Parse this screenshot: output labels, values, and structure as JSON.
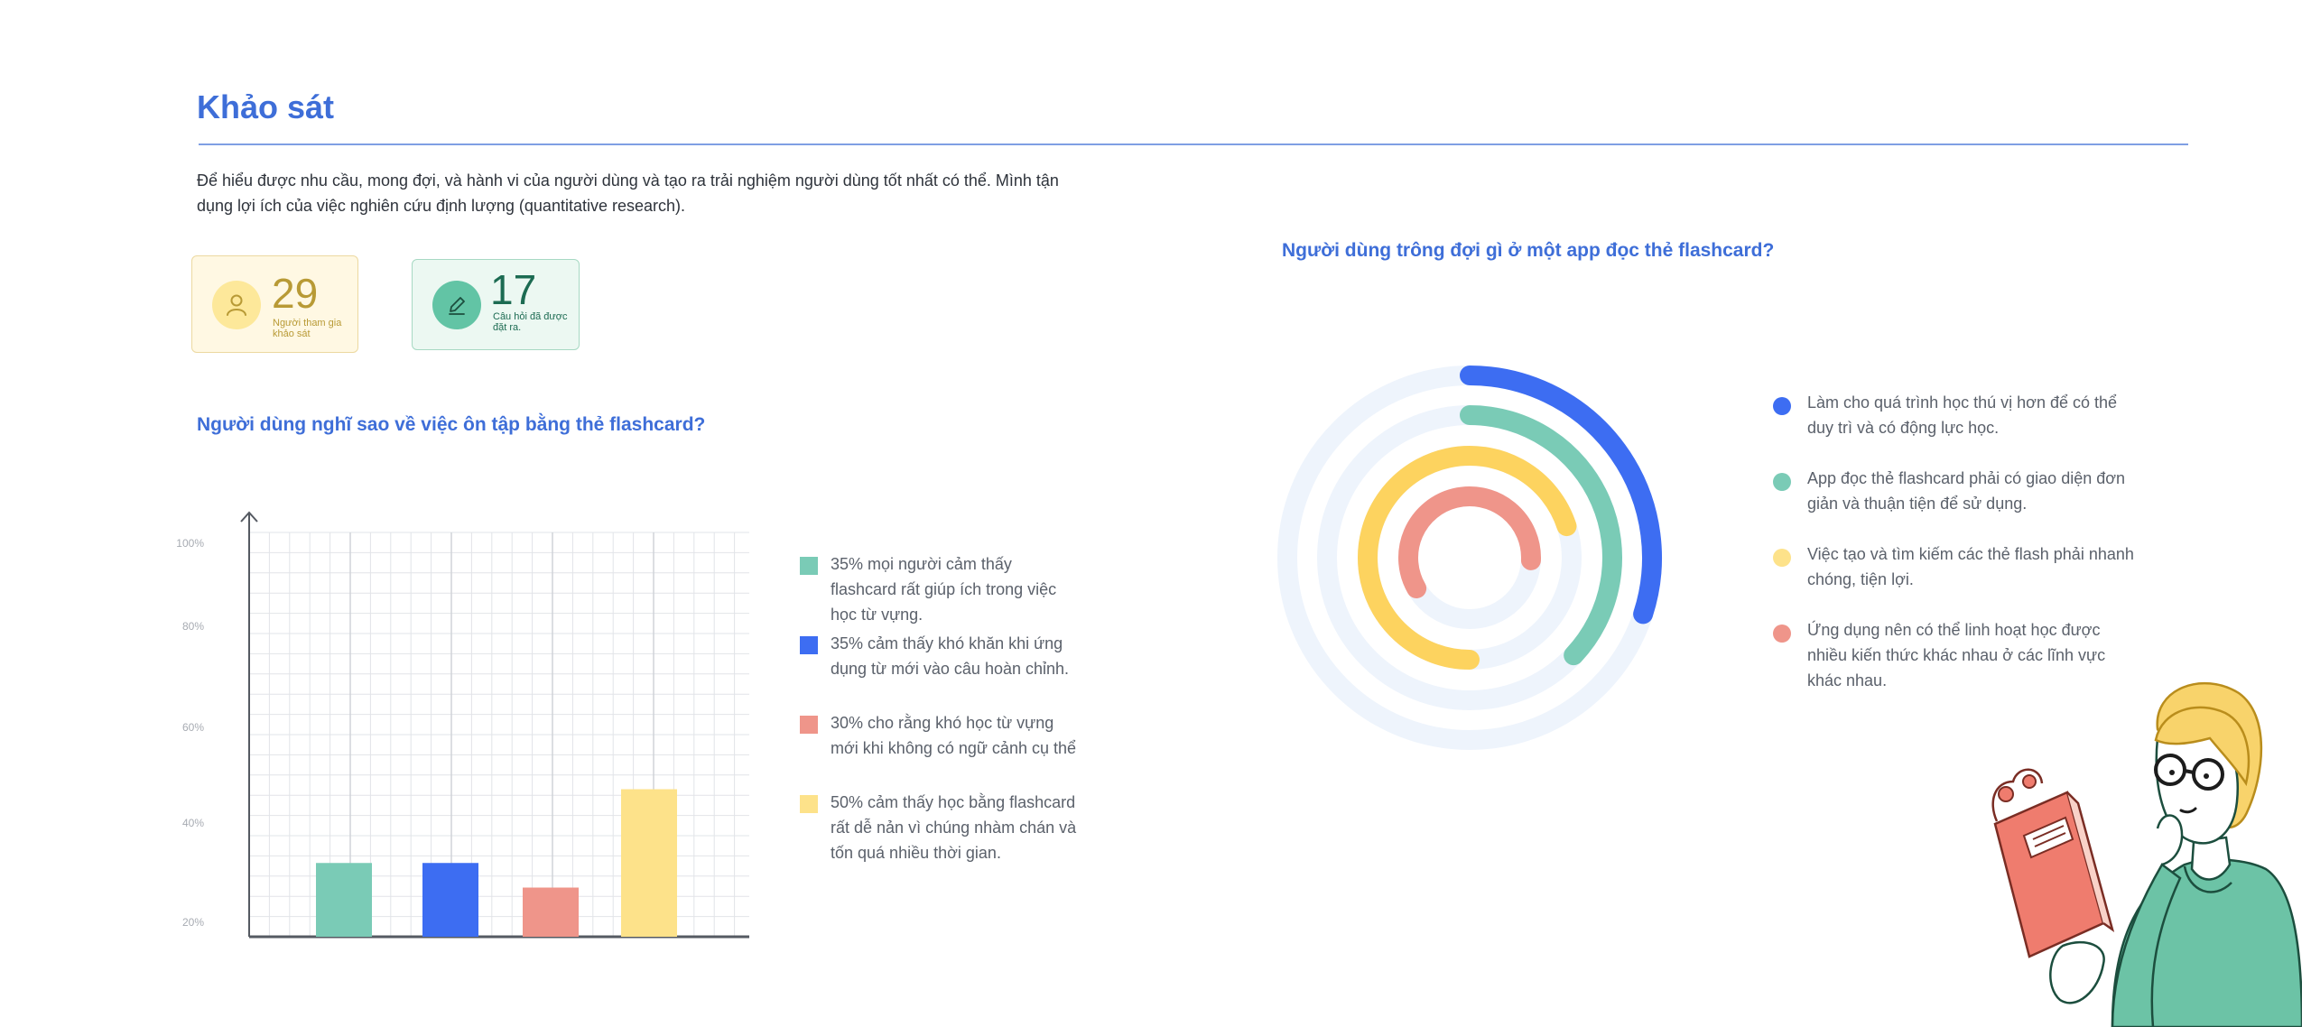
{
  "page": {
    "title": "Khảo sát",
    "intro": "Để hiểu được nhu cầu, mong đợi, và hành vi của người dùng và tạo ra trải nghiệm người dùng tốt nhất có thể. Mình tận dụng lợi ích của việc nghiên cứu định lượng (quantitative research)."
  },
  "stats": [
    {
      "value": "29",
      "label": "Người tham gia khảo sát",
      "icon": "user-icon",
      "color": "#b89a35"
    },
    {
      "value": "17",
      "label": "Câu hỏi đã được đặt ra.",
      "icon": "pencil-icon",
      "color": "#1c6b52"
    }
  ],
  "colors": {
    "accent": "#3e6ed8",
    "teal": "#7acbb6",
    "blue": "#3d6df2",
    "salmon": "#ef958a",
    "yellow": "#fde28a"
  },
  "chart_data": [
    {
      "type": "bar",
      "title": "Người dùng nghĩ sao về việc ôn tập bằng thẻ flashcard?",
      "y_ticks": [
        "100%",
        "80%",
        "60%",
        "40%",
        "20%"
      ],
      "ylim": [
        20,
        100
      ],
      "grid": true,
      "categories": [
        "35% mọi người cảm thấy flashcard rất giúp ích trong việc học từ vựng.",
        "35% cảm thấy khó khăn khi ứng dụng từ mới vào câu hoàn chỉnh.",
        "30% cho rằng khó học từ vựng mới khi không có ngữ cảnh cụ thể",
        "50% cảm thấy học bằng flashcard rất dễ nản vì chúng nhàm chán và tốn quá nhiều thời gian."
      ],
      "values": [
        35,
        35,
        30,
        50
      ],
      "colors": [
        "#7acbb6",
        "#3d6df2",
        "#ef958a",
        "#fde28a"
      ],
      "legend_position": "right"
    },
    {
      "type": "radial-bar",
      "title": "Người dùng trông đợi gì ở một app đọc thẻ flashcard?",
      "categories": [
        "Làm cho quá trình học thú vị hơn để có thể duy trì và có động lực học.",
        "App đọc thẻ flashcard phải có giao diện đơn giản và thuận tiện để sử dụng.",
        "Việc tạo và tìm kiếm các thẻ flash phải nhanh chóng, tiện lợi.",
        "Ứng dụng nên có thể linh hoạt học được nhiều kiến thức khác nhau ở các lĩnh vực khác nhau."
      ],
      "values": [
        30,
        37,
        70,
        59
      ],
      "value_unit": "% of ring",
      "colors": [
        "#3d6df2",
        "#7acbb6",
        "#fdd35f",
        "#ef958a"
      ],
      "legend_position": "right"
    }
  ]
}
